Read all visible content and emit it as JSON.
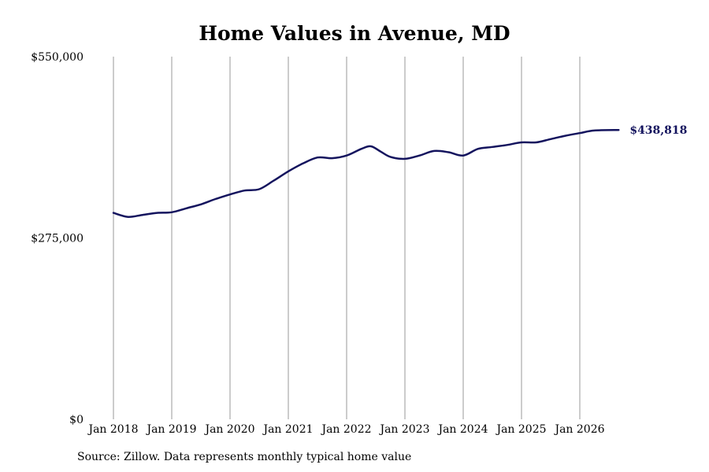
{
  "chart_data": {
    "type": "line",
    "title": "Home Values in Avenue, MD",
    "xlabel": "",
    "ylabel": "",
    "source": "Source: Zillow. Data represents monthly typical home value",
    "ylim": [
      0,
      550000
    ],
    "y_ticks": [
      {
        "value": 0,
        "label": "$0"
      },
      {
        "value": 275000,
        "label": "$275,000"
      },
      {
        "value": 550000,
        "label": "$550,000"
      }
    ],
    "x_ticks": [
      {
        "value": "2018-01",
        "label": "Jan 2018"
      },
      {
        "value": "2019-01",
        "label": "Jan 2019"
      },
      {
        "value": "2020-01",
        "label": "Jan 2020"
      },
      {
        "value": "2021-01",
        "label": "Jan 2021"
      },
      {
        "value": "2022-01",
        "label": "Jan 2022"
      },
      {
        "value": "2023-01",
        "label": "Jan 2023"
      },
      {
        "value": "2024-01",
        "label": "Jan 2024"
      },
      {
        "value": "2025-01",
        "label": "Jan 2025"
      },
      {
        "value": "2026-01",
        "label": "Jan 2026"
      }
    ],
    "grid": "vertical",
    "line_color": "#14145e",
    "end_label": "$438,818",
    "series": [
      {
        "points": [
          [
            "2018-01",
            313000
          ],
          [
            "2018-04",
            307000
          ],
          [
            "2018-07",
            310000
          ],
          [
            "2018-10",
            313000
          ],
          [
            "2019-01",
            314000
          ],
          [
            "2019-04",
            320000
          ],
          [
            "2019-07",
            326000
          ],
          [
            "2019-10",
            334000
          ],
          [
            "2020-01",
            341000
          ],
          [
            "2020-04",
            347000
          ],
          [
            "2020-07",
            349000
          ],
          [
            "2020-10",
            362000
          ],
          [
            "2021-01",
            376000
          ],
          [
            "2021-04",
            388000
          ],
          [
            "2021-07",
            397000
          ],
          [
            "2021-10",
            396000
          ],
          [
            "2022-01",
            400000
          ],
          [
            "2022-04",
            410000
          ],
          [
            "2022-06",
            414000
          ],
          [
            "2022-08",
            406000
          ],
          [
            "2022-10",
            398000
          ],
          [
            "2023-01",
            395000
          ],
          [
            "2023-04",
            400000
          ],
          [
            "2023-07",
            407000
          ],
          [
            "2023-10",
            405000
          ],
          [
            "2024-01",
            400000
          ],
          [
            "2024-04",
            410000
          ],
          [
            "2024-07",
            413000
          ],
          [
            "2024-10",
            416000
          ],
          [
            "2025-01",
            420000
          ],
          [
            "2025-04",
            420000
          ],
          [
            "2025-07",
            425000
          ],
          [
            "2025-10",
            430000
          ],
          [
            "2026-01",
            434000
          ],
          [
            "2026-04",
            438000
          ],
          [
            "2026-09",
            438818
          ]
        ]
      }
    ]
  }
}
